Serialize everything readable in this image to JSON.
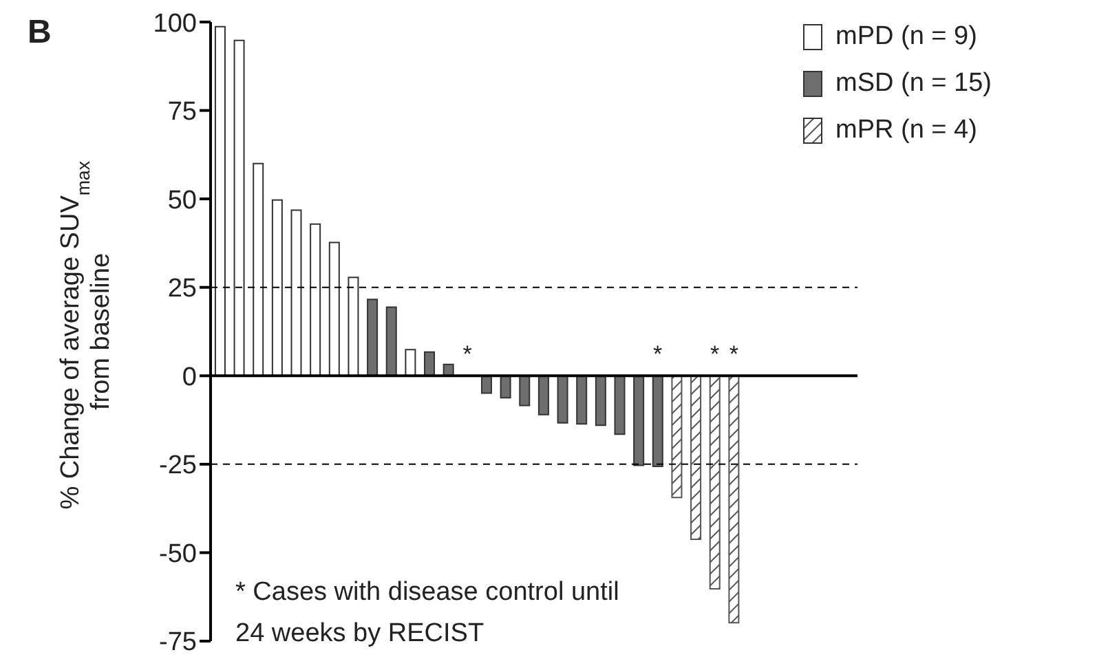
{
  "chart_data": {
    "type": "bar",
    "ylabel": "% Change of average SUV$_{max}$\nfrom baseline",
    "categories": [
      null,
      null,
      null,
      null,
      null,
      null,
      null,
      null,
      null,
      null,
      null,
      null,
      null,
      null,
      null,
      null,
      null,
      null,
      null,
      null,
      null,
      null,
      null,
      null,
      null,
      null,
      null,
      null,
      null,
      null,
      null,
      null,
      null,
      null
    ],
    "series": [
      {
        "name": "mPD (n = 9)",
        "color": "#ffffff",
        "values": [
          98.7,
          94.8,
          60,
          49.7,
          46.8,
          42.9,
          37.7,
          27.8,
          null,
          null,
          7.4,
          null,
          null,
          null,
          null,
          null,
          null,
          null,
          null,
          null,
          null,
          null,
          null,
          null,
          null,
          null,
          null,
          null,
          null,
          null,
          null,
          null,
          null,
          null
        ]
      },
      {
        "name": "mSD (n = 15)",
        "color": "#6e6e6e",
        "values": [
          null,
          null,
          null,
          null,
          null,
          null,
          null,
          null,
          21.6,
          19.4,
          null,
          6.7,
          3.2,
          0,
          -4.9,
          -6.2,
          -8.4,
          -11,
          -13.3,
          -13.6,
          -14,
          -16.5,
          -25.3,
          -25.6,
          null,
          null,
          null,
          null,
          null,
          null,
          null,
          null,
          null,
          null
        ],
        "value_labels": [
          null,
          null,
          null,
          null,
          null,
          null,
          null,
          null,
          null,
          null,
          null,
          null,
          null,
          "*",
          null,
          null,
          null,
          null,
          null,
          null,
          null,
          null,
          null,
          "*",
          null,
          null,
          null,
          null,
          null,
          null,
          null,
          null,
          null,
          null
        ]
      },
      {
        "name": "mPR (n = 4)",
        "color": "#555555",
        "values": [
          null,
          null,
          null,
          null,
          null,
          null,
          null,
          null,
          null,
          null,
          null,
          null,
          null,
          null,
          null,
          null,
          null,
          null,
          null,
          null,
          null,
          null,
          null,
          null,
          -34.4,
          -46.2,
          -60.2,
          -69.8,
          null,
          null,
          null,
          null,
          null,
          null
        ],
        "value_labels": [
          null,
          null,
          null,
          null,
          null,
          null,
          null,
          null,
          null,
          null,
          null,
          null,
          null,
          null,
          null,
          null,
          null,
          null,
          null,
          null,
          null,
          null,
          null,
          null,
          null,
          null,
          "*",
          "*",
          null,
          null,
          null,
          null,
          null,
          null
        ]
      }
    ],
    "ylim": [
      -75,
      100
    ],
    "yticks": [
      -75,
      -50,
      -25,
      0,
      25,
      50,
      75,
      100
    ],
    "ref_lines": [
      {
        "axis": "y",
        "value": 0,
        "color": "#000000",
        "line_style": "solid"
      },
      {
        "axis": "y",
        "value": 25,
        "color": "#000000",
        "line_style": "dashed"
      },
      {
        "axis": "y",
        "value": -25,
        "color": "#000000",
        "line_style": "dashed"
      }
    ],
    "legend": "top right",
    "grid": false,
    "annotations": [
      "B",
      "* Cases with disease control until\n24 weeks by RECIST"
    ]
  }
}
